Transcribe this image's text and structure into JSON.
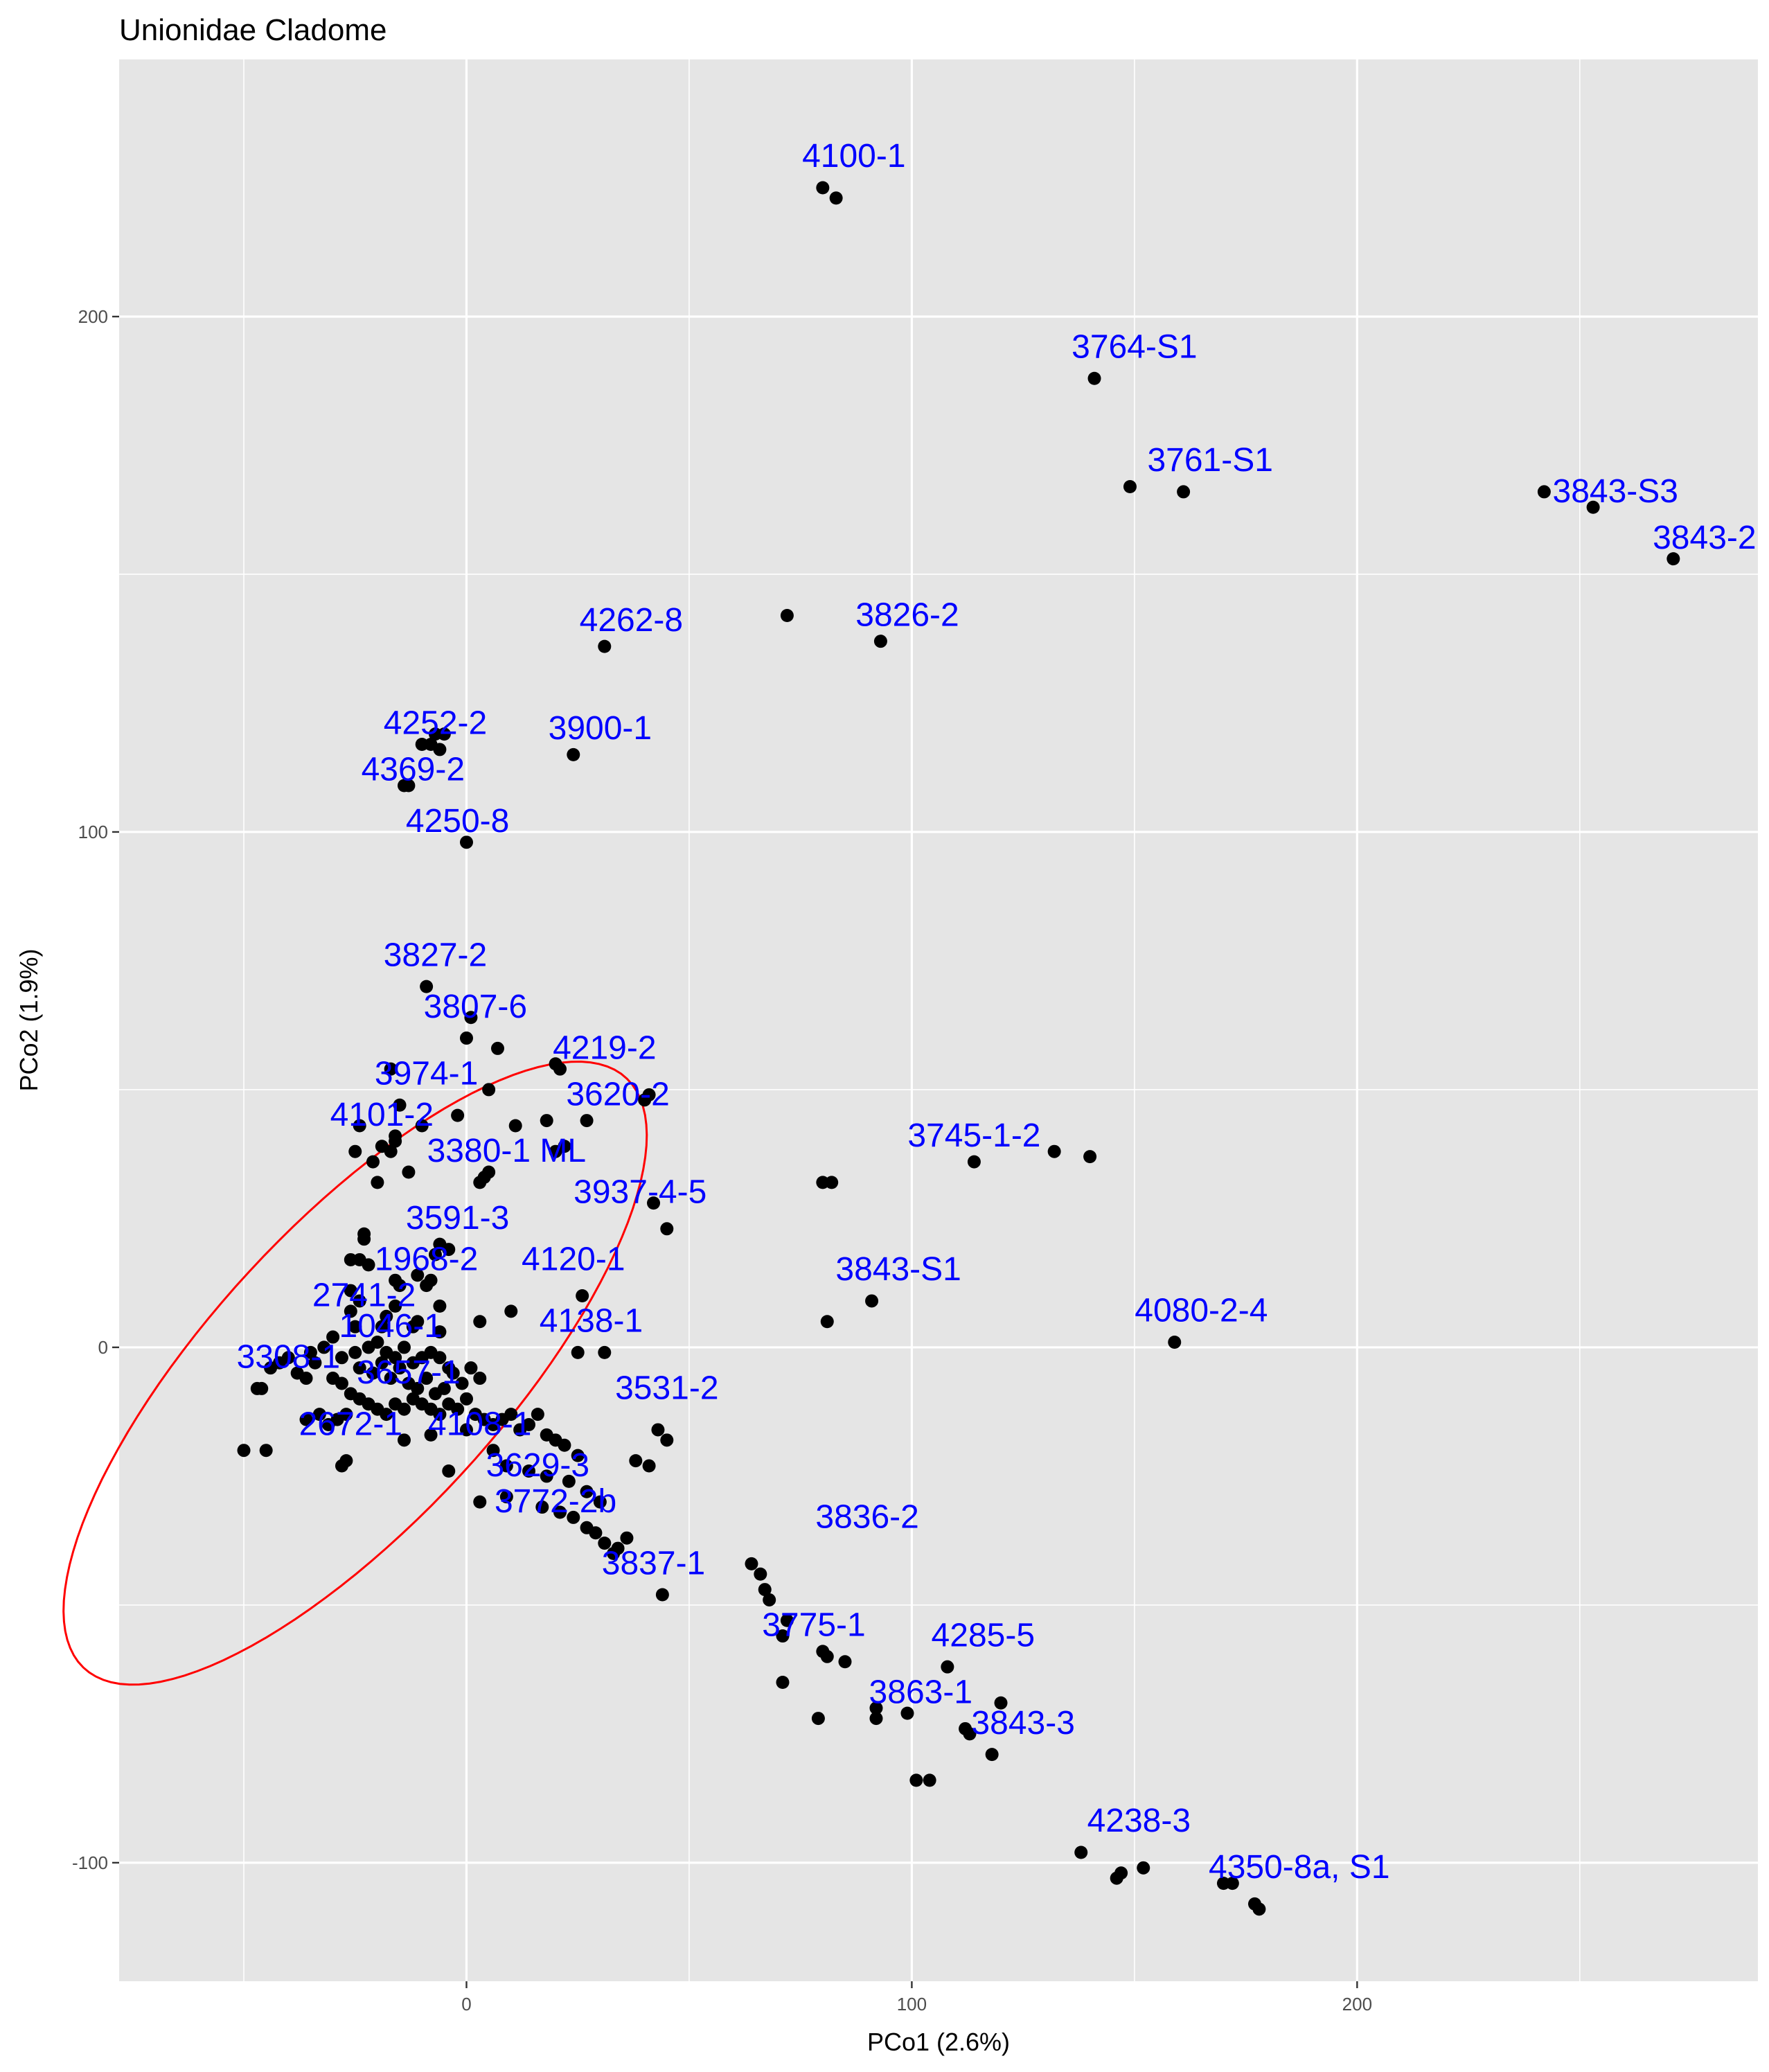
{
  "chart_data": {
    "type": "scatter",
    "title": "Unionidae Cladome",
    "xlabel": "PCo1 (2.6%)",
    "ylabel": "PCo2 (1.9%)",
    "xlim": [
      -78,
      290
    ],
    "ylim": [
      -123,
      250
    ],
    "x_ticks": [
      0,
      100,
      200
    ],
    "x_tick_labels": [
      "0",
      "100",
      "200"
    ],
    "y_ticks": [
      -100,
      0,
      100,
      200
    ],
    "y_tick_labels": [
      "-100",
      "0",
      "100",
      "200"
    ],
    "grid": true,
    "legend": "none",
    "colors": {
      "panel": "#e5e5e5",
      "grid": "#ffffff",
      "points": "#000000",
      "labels": "#0000ff",
      "ellipse": "#ff0000"
    },
    "ellipse": {
      "cx": -25,
      "cy": -5,
      "rx": 93,
      "ry": 34,
      "angle_deg": -42
    },
    "labels": [
      {
        "text": "4100-1",
        "x": 87,
        "y": 229
      },
      {
        "text": "3764-S1",
        "x": 150,
        "y": 192
      },
      {
        "text": "3761-S1",
        "x": 167,
        "y": 170
      },
      {
        "text": "3843-S3",
        "x": 258,
        "y": 164
      },
      {
        "text": "3843-2",
        "x": 278,
        "y": 155
      },
      {
        "text": "4262-8",
        "x": 37,
        "y": 139
      },
      {
        "text": "3826-2",
        "x": 99,
        "y": 140
      },
      {
        "text": "4252-2",
        "x": -7,
        "y": 119
      },
      {
        "text": "3900-1",
        "x": 30,
        "y": 118
      },
      {
        "text": "4369-2",
        "x": -12,
        "y": 110
      },
      {
        "text": "4250-8",
        "x": -2,
        "y": 100
      },
      {
        "text": "3827-2",
        "x": -7,
        "y": 74
      },
      {
        "text": "3807-6",
        "x": 2,
        "y": 64
      },
      {
        "text": "4219-2",
        "x": 31,
        "y": 56
      },
      {
        "text": "3974-1",
        "x": -9,
        "y": 51
      },
      {
        "text": "3620-2",
        "x": 34,
        "y": 47
      },
      {
        "text": "4101-2",
        "x": -19,
        "y": 43
      },
      {
        "text": "3745-1-2",
        "x": 114,
        "y": 39
      },
      {
        "text": "3380-1 ML",
        "x": 9,
        "y": 36
      },
      {
        "text": "3937-4-5",
        "x": 39,
        "y": 28
      },
      {
        "text": "3591-3",
        "x": -2,
        "y": 23
      },
      {
        "text": "1968-2",
        "x": -9,
        "y": 15
      },
      {
        "text": "4120-1",
        "x": 24,
        "y": 15
      },
      {
        "text": "3843-S1",
        "x": 97,
        "y": 13
      },
      {
        "text": "2741-2",
        "x": -23,
        "y": 8
      },
      {
        "text": "4080-2-4",
        "x": 165,
        "y": 5
      },
      {
        "text": "1046-1",
        "x": -17,
        "y": 2
      },
      {
        "text": "4138-1",
        "x": 28,
        "y": 3
      },
      {
        "text": "3308-1",
        "x": -40,
        "y": -4
      },
      {
        "text": "3657-1",
        "x": -13,
        "y": -7
      },
      {
        "text": "3531-2",
        "x": 45,
        "y": -10
      },
      {
        "text": "2672-1",
        "x": -26,
        "y": -17
      },
      {
        "text": "4108-1",
        "x": 3,
        "y": -17
      },
      {
        "text": "3629-3",
        "x": 16,
        "y": -25
      },
      {
        "text": "3772-2b",
        "x": 20,
        "y": -32
      },
      {
        "text": "3836-2",
        "x": 90,
        "y": -35
      },
      {
        "text": "3837-1",
        "x": 42,
        "y": -44
      },
      {
        "text": "3775-1",
        "x": 78,
        "y": -56
      },
      {
        "text": "4285-5",
        "x": 116,
        "y": -58
      },
      {
        "text": "3863-1",
        "x": 102,
        "y": -69
      },
      {
        "text": "3843-3",
        "x": 125,
        "y": -75
      },
      {
        "text": "4238-3",
        "x": 151,
        "y": -94
      },
      {
        "text": "4350-8a, S1",
        "x": 187,
        "y": -103
      }
    ],
    "points": [
      [
        80,
        225
      ],
      [
        83,
        223
      ],
      [
        141,
        188
      ],
      [
        149,
        167
      ],
      [
        161,
        166
      ],
      [
        242,
        166
      ],
      [
        253,
        163
      ],
      [
        271,
        153
      ],
      [
        72,
        142
      ],
      [
        93,
        137
      ],
      [
        31,
        136
      ],
      [
        -5,
        119
      ],
      [
        -7,
        119
      ],
      [
        -8,
        117
      ],
      [
        -10,
        117
      ],
      [
        -6,
        116
      ],
      [
        24,
        115
      ],
      [
        -13,
        109
      ],
      [
        -14,
        109
      ],
      [
        0,
        98
      ],
      [
        -9,
        70
      ],
      [
        1,
        64
      ],
      [
        0,
        60
      ],
      [
        7,
        58
      ],
      [
        20,
        55
      ],
      [
        21,
        54
      ],
      [
        -17,
        54
      ],
      [
        5,
        50
      ],
      [
        41,
        49
      ],
      [
        40,
        48
      ],
      [
        -15,
        47
      ],
      [
        -2,
        45
      ],
      [
        27,
        44
      ],
      [
        18,
        44
      ],
      [
        -10,
        43
      ],
      [
        -24,
        43
      ],
      [
        11,
        43
      ],
      [
        -16,
        41
      ],
      [
        -16,
        40
      ],
      [
        -19,
        39
      ],
      [
        22,
        39
      ],
      [
        -17,
        38
      ],
      [
        -25,
        38
      ],
      [
        20,
        38
      ],
      [
        -21,
        36
      ],
      [
        114,
        36
      ],
      [
        132,
        38
      ],
      [
        140,
        37
      ],
      [
        5,
        34
      ],
      [
        4,
        33
      ],
      [
        3,
        32
      ],
      [
        -20,
        32
      ],
      [
        -13,
        34
      ],
      [
        80,
        32
      ],
      [
        82,
        32
      ],
      [
        42,
        28
      ],
      [
        45,
        23
      ],
      [
        -23,
        22
      ],
      [
        -23,
        21
      ],
      [
        -6,
        20
      ],
      [
        -4,
        19
      ],
      [
        -7,
        18
      ],
      [
        -24,
        17
      ],
      [
        -26,
        17
      ],
      [
        -22,
        16
      ],
      [
        -11,
        14
      ],
      [
        -16,
        13
      ],
      [
        -8,
        13
      ],
      [
        -15,
        12
      ],
      [
        -9,
        12
      ],
      [
        -26,
        11
      ],
      [
        26,
        10
      ],
      [
        -24,
        9
      ],
      [
        -16,
        8
      ],
      [
        -6,
        8
      ],
      [
        -26,
        7
      ],
      [
        10,
        7
      ],
      [
        -18,
        6
      ],
      [
        -11,
        5
      ],
      [
        91,
        9
      ],
      [
        81,
        5
      ],
      [
        -25,
        4
      ],
      [
        -12,
        4
      ],
      [
        3,
        5
      ],
      [
        -19,
        4
      ],
      [
        -6,
        3
      ],
      [
        159,
        1
      ],
      [
        -30,
        2
      ],
      [
        -32,
        0
      ],
      [
        -35,
        -1
      ],
      [
        -28,
        -2
      ],
      [
        -25,
        -1
      ],
      [
        -22,
        0
      ],
      [
        -20,
        1
      ],
      [
        -18,
        -1
      ],
      [
        -16,
        -2
      ],
      [
        -14,
        0
      ],
      [
        -12,
        -3
      ],
      [
        -10,
        -2
      ],
      [
        -8,
        -1
      ],
      [
        -6,
        -2
      ],
      [
        -4,
        -4
      ],
      [
        -24,
        -4
      ],
      [
        -21,
        -5
      ],
      [
        -19,
        -3
      ],
      [
        -17,
        -6
      ],
      [
        -15,
        -4
      ],
      [
        -13,
        -7
      ],
      [
        -11,
        -8
      ],
      [
        -9,
        -6
      ],
      [
        -7,
        -9
      ],
      [
        -5,
        -8
      ],
      [
        -3,
        -5
      ],
      [
        -1,
        -7
      ],
      [
        1,
        -4
      ],
      [
        3,
        -6
      ],
      [
        -40,
        -2
      ],
      [
        -42,
        -3
      ],
      [
        -44,
        -4
      ],
      [
        -38,
        -5
      ],
      [
        -36,
        -6
      ],
      [
        -34,
        -3
      ],
      [
        -46,
        -8
      ],
      [
        -47,
        -8
      ],
      [
        -30,
        -6
      ],
      [
        -28,
        -7
      ],
      [
        -26,
        -9
      ],
      [
        -24,
        -10
      ],
      [
        -22,
        -11
      ],
      [
        -20,
        -12
      ],
      [
        -18,
        -13
      ],
      [
        -16,
        -11
      ],
      [
        -14,
        -12
      ],
      [
        -12,
        -10
      ],
      [
        -10,
        -11
      ],
      [
        -8,
        -12
      ],
      [
        -6,
        -13
      ],
      [
        -4,
        -11
      ],
      [
        -2,
        -12
      ],
      [
        0,
        -10
      ],
      [
        2,
        -13
      ],
      [
        4,
        -14
      ],
      [
        6,
        -15
      ],
      [
        8,
        -14
      ],
      [
        10,
        -13
      ],
      [
        12,
        -16
      ],
      [
        14,
        -15
      ],
      [
        16,
        -13
      ],
      [
        18,
        -17
      ],
      [
        20,
        -18
      ],
      [
        22,
        -19
      ],
      [
        25,
        -21
      ],
      [
        -27,
        -13
      ],
      [
        -29,
        -14
      ],
      [
        -31,
        -15
      ],
      [
        -33,
        -13
      ],
      [
        -36,
        -14
      ],
      [
        -50,
        -20
      ],
      [
        -45,
        -20
      ],
      [
        -27,
        -22
      ],
      [
        -28,
        -23
      ],
      [
        -14,
        -18
      ],
      [
        -8,
        -17
      ],
      [
        0,
        -16
      ],
      [
        6,
        -20
      ],
      [
        9,
        -23
      ],
      [
        14,
        -24
      ],
      [
        18,
        -25
      ],
      [
        23,
        -26
      ],
      [
        27,
        -28
      ],
      [
        30,
        -30
      ],
      [
        -4,
        -24
      ],
      [
        3,
        -30
      ],
      [
        9,
        -29
      ],
      [
        17,
        -31
      ],
      [
        21,
        -32
      ],
      [
        24,
        -33
      ],
      [
        27,
        -35
      ],
      [
        29,
        -36
      ],
      [
        31,
        -38
      ],
      [
        33,
        -40
      ],
      [
        34,
        -39
      ],
      [
        36,
        -37
      ],
      [
        38,
        -22
      ],
      [
        41,
        -23
      ],
      [
        43,
        -16
      ],
      [
        45,
        -18
      ],
      [
        25,
        -1
      ],
      [
        31,
        -1
      ],
      [
        44,
        -48
      ],
      [
        64,
        -42
      ],
      [
        66,
        -44
      ],
      [
        67,
        -47
      ],
      [
        68,
        -49
      ],
      [
        72,
        -53
      ],
      [
        71,
        -56
      ],
      [
        80,
        -59
      ],
      [
        81,
        -60
      ],
      [
        85,
        -61
      ],
      [
        71,
        -65
      ],
      [
        108,
        -62
      ],
      [
        120,
        -69
      ],
      [
        79,
        -72
      ],
      [
        92,
        -72
      ],
      [
        99,
        -71
      ],
      [
        92,
        -70
      ],
      [
        112,
        -74
      ],
      [
        113,
        -75
      ],
      [
        118,
        -79
      ],
      [
        101,
        -84
      ],
      [
        104,
        -84
      ],
      [
        138,
        -98
      ],
      [
        146,
        -103
      ],
      [
        147,
        -102
      ],
      [
        152,
        -101
      ],
      [
        170,
        -104
      ],
      [
        172,
        -104
      ],
      [
        177,
        -108
      ],
      [
        178,
        -109
      ]
    ]
  }
}
